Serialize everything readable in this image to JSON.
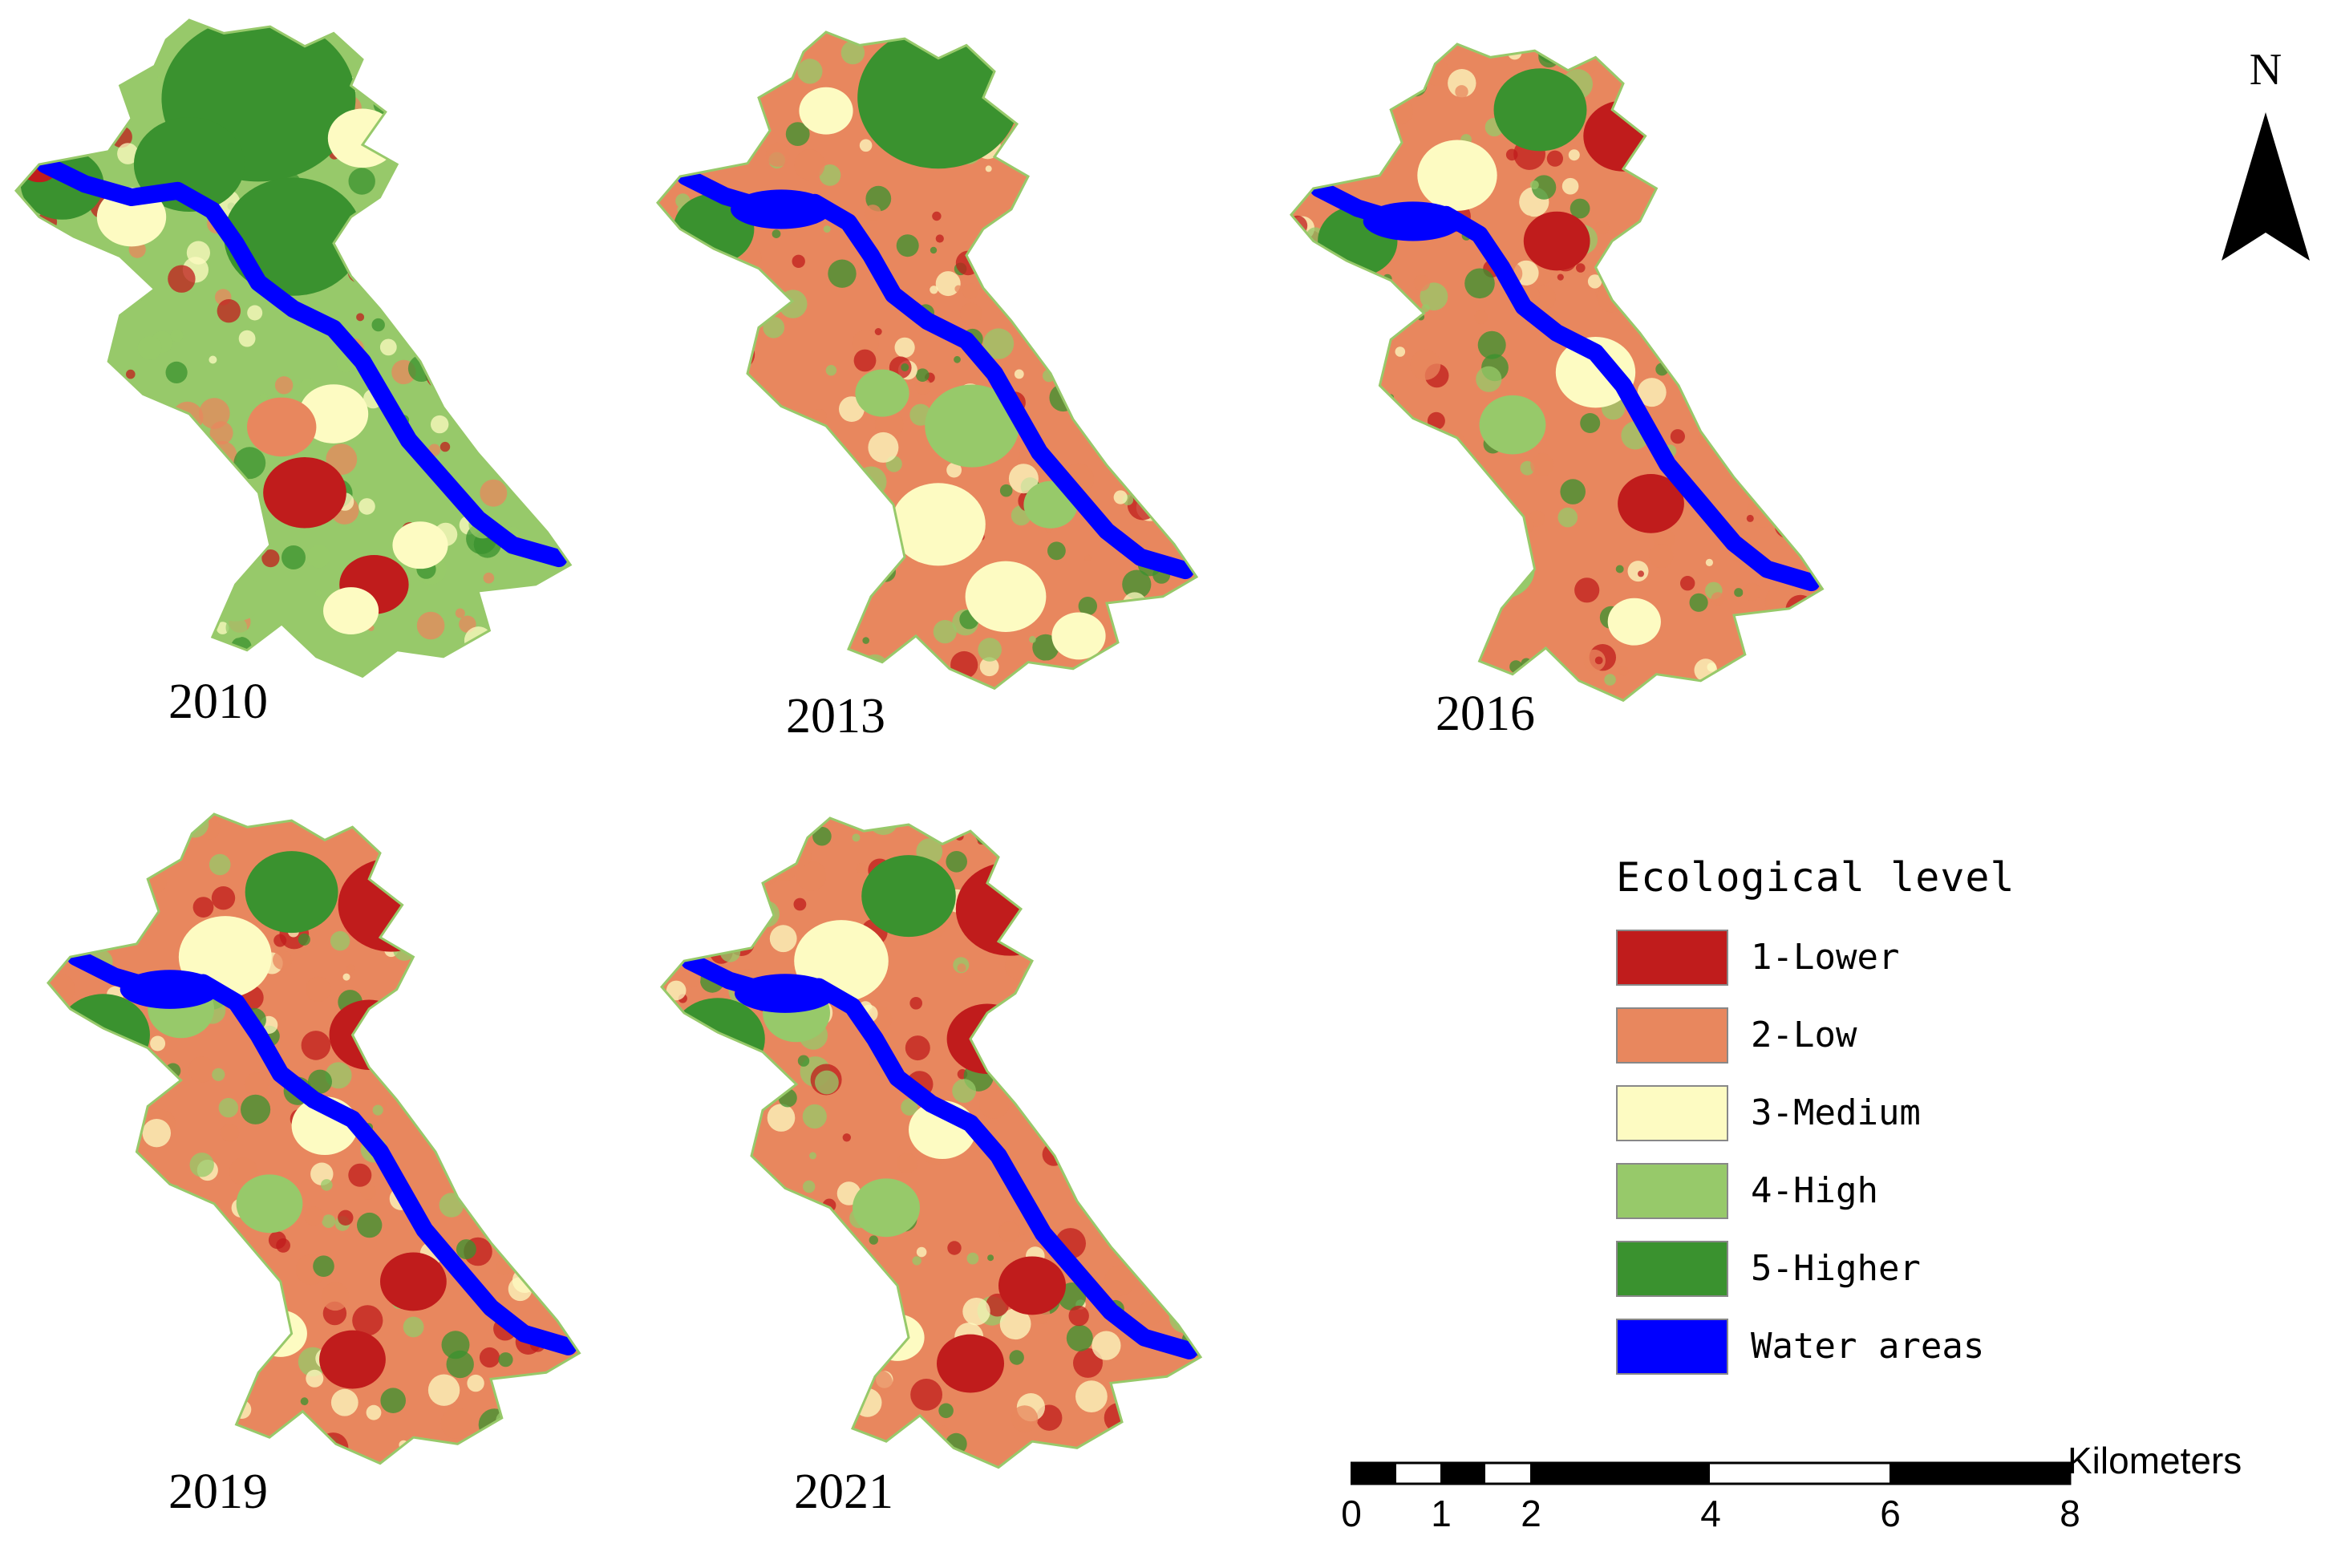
{
  "maps": [
    {
      "year": "2010",
      "theme": "green"
    },
    {
      "year": "2013",
      "theme": "orange"
    },
    {
      "year": "2016",
      "theme": "mixed"
    },
    {
      "year": "2019",
      "theme": "red"
    },
    {
      "year": "2021",
      "theme": "red"
    }
  ],
  "legend": {
    "title": "Ecological level",
    "items": [
      {
        "label": "1-Lower",
        "color": "#c01c1c"
      },
      {
        "label": "2-Low",
        "color": "#e8875e"
      },
      {
        "label": "3-Medium",
        "color": "#fdfbc2"
      },
      {
        "label": "4-High",
        "color": "#97c96a"
      },
      {
        "label": "5-Higher",
        "color": "#3a922f"
      },
      {
        "label": "Water areas",
        "color": "#0000ff"
      }
    ]
  },
  "north_arrow": {
    "letter": "N"
  },
  "scale_bar": {
    "unit": "Kilometers",
    "ticks": [
      "0",
      "1",
      "2",
      "4",
      "6",
      "8"
    ]
  }
}
